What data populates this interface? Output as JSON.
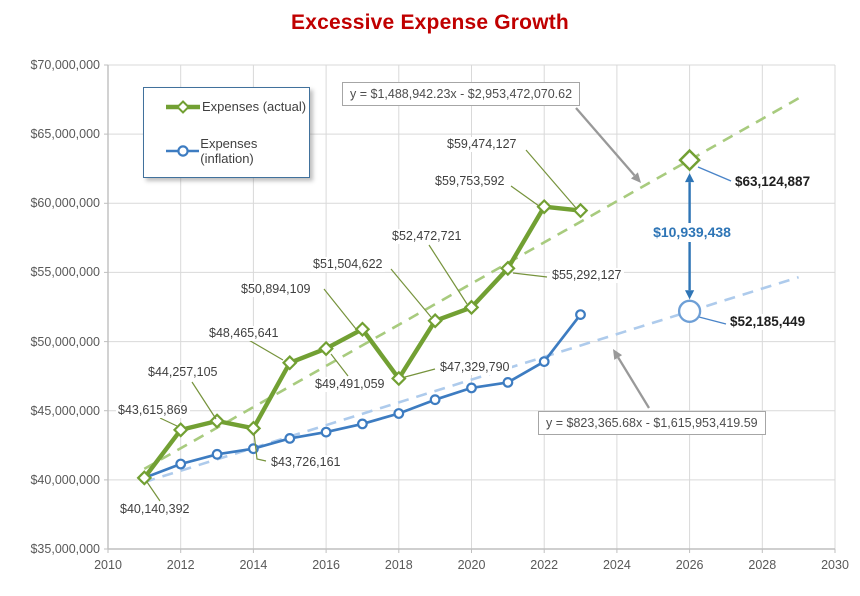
{
  "colors": {
    "title": "#C00000",
    "actual_line": "#72A033",
    "actual_trend": "#A8CB7E",
    "inflation_line": "#3D7CC1",
    "inflation_trend": "#AECBEC",
    "gap_blue": "#2E75B6",
    "leader_olive": "#76933C",
    "leader_blue": "#4A84C8",
    "annotation_gray": "#999999",
    "gridline": "#D9D9D9",
    "axis": "#BFBFBF",
    "tick_text": "#595959",
    "label_text": "#3F3F3F"
  },
  "chart_data": {
    "type": "line",
    "title": "Excessive Expense Growth",
    "x_axis": {
      "min": 2010,
      "max": 2030,
      "tick_step": 2,
      "tick_labels": [
        "2010",
        "2012",
        "2014",
        "2016",
        "2018",
        "2020",
        "2022",
        "2024",
        "2026",
        "2028",
        "2030"
      ]
    },
    "y_axis": {
      "min": 35000000,
      "max": 70000000,
      "tick_step": 5000000,
      "tick_labels": [
        "$35,000,000",
        "$40,000,000",
        "$45,000,000",
        "$50,000,000",
        "$55,000,000",
        "$60,000,000",
        "$65,000,000",
        "$70,000,000"
      ]
    },
    "grid": true,
    "legend_position": "inside-top-left",
    "years": [
      2011,
      2012,
      2013,
      2014,
      2015,
      2016,
      2017,
      2018,
      2019,
      2020,
      2021,
      2022,
      2023
    ],
    "series": [
      {
        "name": "Expenses (actual)",
        "marker": "diamond",
        "color": "#72A033",
        "values": [
          40140392,
          43615869,
          44257105,
          43726161,
          48465641,
          49491059,
          50894109,
          47329790,
          51504622,
          52472721,
          55292127,
          59753592,
          59474127
        ],
        "data_labels": [
          "$40,140,392",
          "$43,615,869",
          "$44,257,105",
          "$43,726,161",
          "$48,465,641",
          "$49,491,059",
          "$50,894,109",
          "$47,329,790",
          "$51,504,622",
          "$52,472,721",
          "$55,292,127",
          "$59,753,592",
          "$59,474,127"
        ]
      },
      {
        "name": "Expenses (inflation)",
        "marker": "circle",
        "color": "#3D7CC1",
        "values_estimated_from_pixels": true,
        "values": [
          40140392,
          41150000,
          41850000,
          42250000,
          43000000,
          43450000,
          44050000,
          44800000,
          45800000,
          46650000,
          47050000,
          48550000,
          51950000
        ]
      }
    ],
    "trendlines": [
      {
        "series": "Expenses (actual)",
        "equation": "y = $1,488,942.23x - $2,953,472,070.62",
        "slope": 1488942.23,
        "intercept": -2953472070.62,
        "color": "#A8CB7E",
        "x_start": 2011,
        "x_end": 2029
      },
      {
        "series": "Expenses (inflation)",
        "equation": "y = $823,365.68x - $1,615,953,419.59",
        "slope": 823365.68,
        "intercept": -1615953419.59,
        "color": "#AECBEC",
        "x_start": 2011,
        "x_end": 2029
      }
    ],
    "projections": [
      {
        "series": "Expenses (actual)",
        "year": 2026,
        "value": 63124887,
        "label": "$63,124,887"
      },
      {
        "series": "Expenses (inflation)",
        "year": 2026,
        "value": 52185449,
        "label": "$52,185,449"
      }
    ],
    "gap_annotation": {
      "year": 2026,
      "value": 10939438,
      "label": "$10,939,438"
    }
  }
}
